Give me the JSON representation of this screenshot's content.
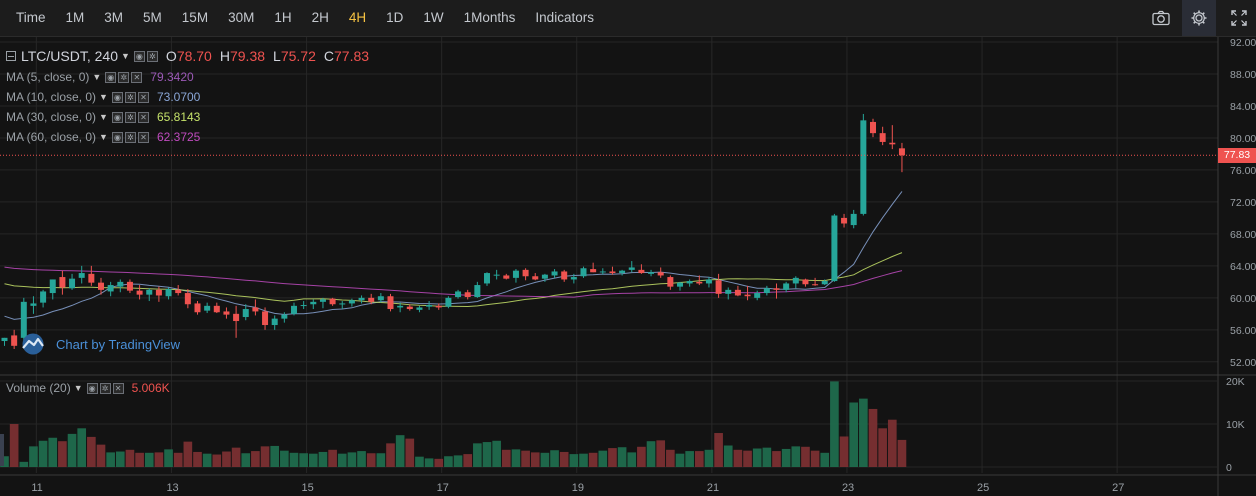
{
  "toolbar": {
    "items": [
      {
        "label": "Time"
      },
      {
        "label": "1M"
      },
      {
        "label": "3M"
      },
      {
        "label": "5M"
      },
      {
        "label": "15M"
      },
      {
        "label": "30M"
      },
      {
        "label": "1H"
      },
      {
        "label": "2H"
      },
      {
        "label": "4H",
        "active": true
      },
      {
        "label": "1D"
      },
      {
        "label": "1W"
      },
      {
        "label": "1Months"
      },
      {
        "label": "Indicators"
      }
    ],
    "right_icons": [
      "camera-icon",
      "gear-icon",
      "fullscreen-icon"
    ]
  },
  "legend": {
    "symbol": "LTC/USDT, 240",
    "ohlc": [
      {
        "key": "O",
        "value": "78.70"
      },
      {
        "key": "H",
        "value": "79.38"
      },
      {
        "key": "L",
        "value": "75.72"
      },
      {
        "key": "C",
        "value": "77.83"
      }
    ],
    "indicators": [
      {
        "name": "MA (5, close, 0)",
        "value": "79.3420",
        "color": "#9b59b6"
      },
      {
        "name": "MA (10, close, 0)",
        "value": "73.0700",
        "color": "#8aa6d6"
      },
      {
        "name": "MA (30, close, 0)",
        "value": "65.8143",
        "color": "#c5e26a"
      },
      {
        "name": "MA (60, close, 0)",
        "value": "62.3725",
        "color": "#c04bbf"
      }
    ],
    "volume": {
      "name": "Volume (20)",
      "value": "5.006K",
      "color": "#ef5350"
    }
  },
  "watermark": "Chart by TradingView",
  "last_price_label": "77.83",
  "chart_data": {
    "type": "candlestick",
    "symbol": "LTC/USDT",
    "interval": "240",
    "x_tick_labels": [
      "11",
      "13",
      "15",
      "17",
      "19",
      "21",
      "23",
      "25",
      "27"
    ],
    "y_tick_labels": [
      "52.00",
      "56.00",
      "60.00",
      "64.00",
      "68.00",
      "72.00",
      "76.00",
      "80.00",
      "84.00",
      "88.00",
      "92.00"
    ],
    "ylim": [
      50.6,
      92.0
    ],
    "volume_tick_labels": [
      "0",
      "10K",
      "20K"
    ],
    "volume_ylim": [
      0,
      20000
    ],
    "last_price": 77.83,
    "up_color": "#26a69a",
    "down_color": "#ef5350",
    "candles": [
      [
        54.6,
        55.0,
        54.0,
        55.0
      ],
      [
        55.3,
        56.0,
        53.6,
        54.0
      ],
      [
        55.0,
        60.0,
        54.5,
        59.5
      ],
      [
        59.0,
        60.2,
        58.0,
        59.3
      ],
      [
        59.4,
        61.0,
        58.8,
        60.8
      ],
      [
        60.6,
        62.3,
        59.8,
        62.3
      ],
      [
        62.6,
        63.4,
        60.4,
        61.3
      ],
      [
        61.2,
        63.0,
        61.0,
        62.4
      ],
      [
        62.5,
        64.0,
        61.8,
        63.1
      ],
      [
        63.0,
        64.0,
        61.5,
        61.9
      ],
      [
        61.9,
        62.5,
        60.4,
        61.0
      ],
      [
        60.8,
        62.0,
        60.2,
        61.6
      ],
      [
        61.4,
        62.3,
        60.7,
        62.0
      ],
      [
        62.0,
        62.3,
        60.6,
        60.9
      ],
      [
        60.9,
        61.6,
        59.8,
        60.4
      ],
      [
        60.4,
        61.2,
        59.6,
        61.0
      ],
      [
        61.0,
        61.4,
        59.5,
        60.3
      ],
      [
        60.2,
        61.3,
        59.8,
        61.1
      ],
      [
        61.0,
        61.6,
        60.3,
        60.6
      ],
      [
        60.6,
        61.1,
        58.7,
        59.2
      ],
      [
        59.3,
        59.6,
        57.9,
        58.2
      ],
      [
        58.4,
        59.4,
        58.1,
        59.0
      ],
      [
        59.0,
        59.4,
        58.1,
        58.2
      ],
      [
        58.3,
        58.8,
        57.4,
        57.9
      ],
      [
        58.0,
        59.0,
        55.0,
        57.1
      ],
      [
        57.6,
        59.2,
        57.2,
        58.6
      ],
      [
        58.8,
        59.8,
        57.8,
        58.3
      ],
      [
        58.3,
        58.8,
        56.0,
        56.6
      ],
      [
        56.6,
        57.8,
        56.0,
        57.4
      ],
      [
        57.4,
        58.2,
        56.9,
        57.9
      ],
      [
        58.0,
        59.4,
        57.8,
        59.0
      ],
      [
        59.0,
        59.6,
        58.6,
        59.1
      ],
      [
        59.2,
        59.8,
        58.6,
        59.5
      ],
      [
        59.5,
        60.0,
        58.7,
        59.8
      ],
      [
        59.9,
        60.0,
        59.0,
        59.2
      ],
      [
        59.2,
        59.6,
        58.6,
        59.3
      ],
      [
        59.3,
        59.9,
        58.9,
        59.7
      ],
      [
        59.7,
        60.3,
        59.3,
        60.0
      ],
      [
        60.0,
        60.5,
        59.2,
        59.5
      ],
      [
        59.7,
        60.6,
        59.4,
        60.2
      ],
      [
        60.2,
        60.5,
        58.3,
        58.6
      ],
      [
        58.8,
        59.4,
        58.2,
        59.0
      ],
      [
        58.9,
        59.2,
        58.4,
        58.6
      ],
      [
        58.5,
        59.0,
        58.2,
        58.8
      ],
      [
        58.9,
        59.6,
        58.5,
        59.1
      ],
      [
        59.0,
        59.3,
        58.5,
        58.8
      ],
      [
        58.9,
        60.2,
        58.7,
        60.0
      ],
      [
        60.1,
        61.0,
        59.9,
        60.8
      ],
      [
        60.7,
        61.0,
        59.8,
        60.1
      ],
      [
        60.1,
        62.0,
        60.0,
        61.6
      ],
      [
        61.8,
        63.2,
        61.5,
        63.1
      ],
      [
        62.9,
        63.5,
        62.3,
        62.9
      ],
      [
        62.8,
        63.0,
        62.3,
        62.4
      ],
      [
        62.5,
        63.6,
        61.9,
        63.4
      ],
      [
        63.5,
        63.7,
        62.2,
        62.7
      ],
      [
        62.7,
        63.1,
        62.2,
        62.3
      ],
      [
        62.4,
        63.0,
        62.0,
        62.9
      ],
      [
        62.8,
        63.6,
        62.5,
        63.3
      ],
      [
        63.3,
        63.5,
        62.0,
        62.3
      ],
      [
        62.3,
        63.0,
        61.8,
        62.6
      ],
      [
        62.7,
        63.9,
        62.5,
        63.7
      ],
      [
        63.6,
        64.4,
        63.2,
        63.2
      ],
      [
        63.2,
        63.7,
        62.9,
        63.3
      ],
      [
        63.3,
        63.9,
        62.9,
        63.1
      ],
      [
        63.1,
        63.5,
        62.8,
        63.4
      ],
      [
        63.5,
        64.6,
        63.2,
        63.8
      ],
      [
        63.5,
        64.2,
        63.0,
        63.1
      ],
      [
        63.0,
        63.5,
        62.7,
        63.2
      ],
      [
        63.2,
        63.8,
        62.5,
        62.8
      ],
      [
        62.6,
        62.8,
        61.0,
        61.4
      ],
      [
        61.4,
        62.0,
        60.9,
        61.9
      ],
      [
        61.8,
        62.3,
        61.4,
        62.1
      ],
      [
        62.0,
        62.8,
        61.6,
        61.8
      ],
      [
        61.8,
        62.6,
        61.3,
        62.3
      ],
      [
        62.2,
        63.0,
        60.0,
        60.5
      ],
      [
        60.5,
        61.3,
        59.8,
        61.0
      ],
      [
        61.0,
        61.5,
        60.2,
        60.3
      ],
      [
        60.4,
        61.5,
        59.7,
        60.2
      ],
      [
        60.0,
        60.9,
        59.7,
        60.6
      ],
      [
        60.6,
        61.5,
        60.3,
        61.2
      ],
      [
        61.2,
        61.8,
        59.9,
        61.0
      ],
      [
        61.0,
        62.0,
        60.7,
        61.8
      ],
      [
        61.8,
        62.7,
        61.2,
        62.5
      ],
      [
        62.3,
        62.4,
        61.4,
        61.7
      ],
      [
        61.7,
        62.5,
        61.5,
        61.6
      ],
      [
        61.7,
        62.3,
        61.6,
        62.1
      ],
      [
        62.1,
        70.5,
        62.0,
        70.3
      ],
      [
        70.0,
        70.5,
        68.8,
        69.3
      ],
      [
        69.1,
        71.0,
        68.7,
        70.5
      ],
      [
        70.5,
        83.0,
        70.3,
        82.2
      ],
      [
        82.0,
        82.4,
        80.1,
        80.6
      ],
      [
        80.6,
        81.4,
        79.1,
        79.5
      ],
      [
        79.4,
        81.6,
        78.6,
        79.2
      ],
      [
        78.7,
        79.38,
        75.72,
        77.83
      ]
    ],
    "volume": [
      2500,
      10000,
      1200,
      4800,
      6100,
      6800,
      6000,
      7700,
      9000,
      7000,
      5200,
      3400,
      3600,
      4000,
      3300,
      3300,
      3400,
      4100,
      3300,
      5900,
      3500,
      3100,
      2900,
      3600,
      4500,
      3200,
      3700,
      4800,
      4900,
      3800,
      3300,
      3200,
      3100,
      3500,
      4000,
      3100,
      3400,
      3700,
      3200,
      3200,
      5500,
      7400,
      6600,
      2400,
      2000,
      1900,
      2500,
      2700,
      3000,
      5500,
      5800,
      6100,
      4000,
      4100,
      3800,
      3400,
      3300,
      3900,
      3500,
      3000,
      3100,
      3300,
      3800,
      4400,
      4600,
      3400,
      4700,
      6000,
      6200,
      4000,
      3100,
      3700,
      3700,
      4000,
      7900,
      5000,
      4000,
      3800,
      4300,
      4500,
      3700,
      4200,
      4800,
      4700,
      3800,
      3300,
      19900,
      7100,
      15000,
      15900,
      13500,
      9000,
      11000,
      6300
    ]
  }
}
